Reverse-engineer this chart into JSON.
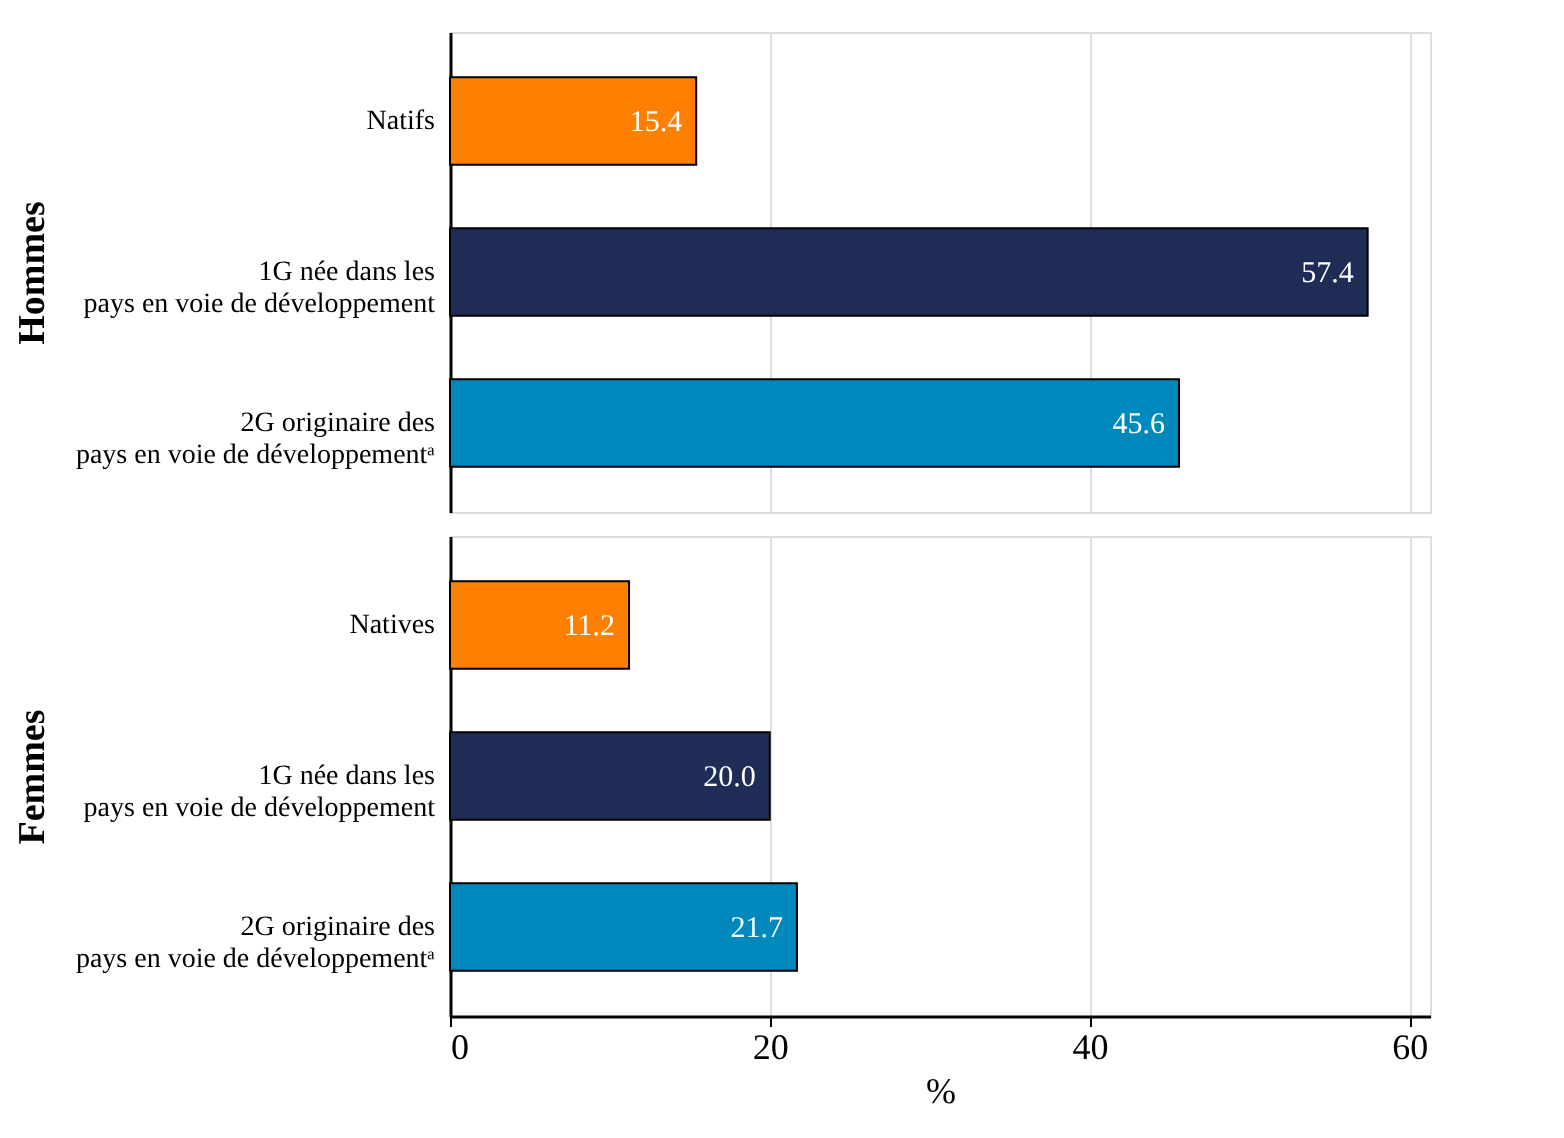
{
  "chart_data": [
    {
      "type": "bar",
      "orientation": "horizontal",
      "ylabel": "Hommes",
      "categories": [
        "Natifs",
        "1G née dans les\npays en voie de développement",
        "2G originaire des\npays en voie de développementᵃ"
      ],
      "values": [
        15.4,
        57.4,
        45.6
      ],
      "value_labels": [
        "15.4",
        "57.4",
        "45.6"
      ],
      "colors": [
        "#ff8000",
        "#1f2d56",
        "#0089bd"
      ],
      "xlim": [
        0,
        61.3
      ],
      "xticks": [
        0,
        20,
        40,
        60
      ],
      "grid": "x",
      "tick_labels": "y"
    },
    {
      "type": "bar",
      "orientation": "horizontal",
      "ylabel": "Femmes",
      "xlabel": "%",
      "categories": [
        "Natives",
        "1G née dans les\npays en voie de développement",
        "2G originaire des\npays en voie de développementᵃ"
      ],
      "values": [
        11.2,
        20.0,
        21.7
      ],
      "value_labels": [
        "11.2",
        "20.0",
        "21.7"
      ],
      "colors": [
        "#ff8000",
        "#1f2d56",
        "#0089bd"
      ],
      "xlim": [
        0,
        61.3
      ],
      "xticks": [
        0,
        20,
        40,
        60
      ],
      "grid": "x"
    }
  ]
}
